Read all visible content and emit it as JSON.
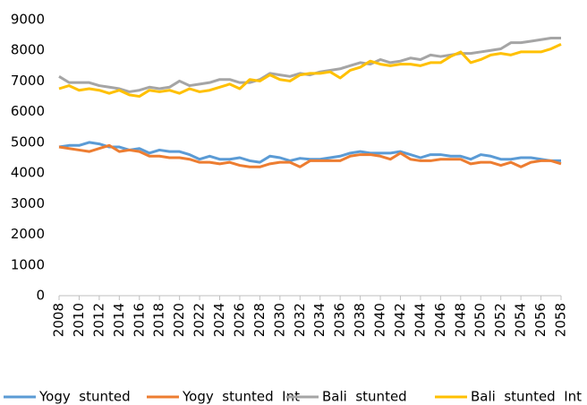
{
  "chart_data": {
    "type": "line",
    "x": [
      2008,
      2009,
      2010,
      2011,
      2012,
      2013,
      2014,
      2015,
      2016,
      2017,
      2018,
      2019,
      2020,
      2021,
      2022,
      2023,
      2024,
      2025,
      2026,
      2027,
      2028,
      2029,
      2030,
      2031,
      2032,
      2033,
      2034,
      2035,
      2036,
      2037,
      2038,
      2039,
      2040,
      2041,
      2042,
      2043,
      2044,
      2045,
      2046,
      2047,
      2048,
      2049,
      2050,
      2051,
      2052,
      2053,
      2054,
      2055,
      2056,
      2057,
      2058
    ],
    "xlim": [
      2008,
      2058
    ],
    "xticks": [
      2008,
      2010,
      2012,
      2014,
      2016,
      2018,
      2020,
      2022,
      2024,
      2026,
      2028,
      2030,
      2032,
      2034,
      2036,
      2038,
      2040,
      2042,
      2044,
      2046,
      2048,
      2050,
      2052,
      2054,
      2056,
      2058
    ],
    "ylim": [
      0,
      9000
    ],
    "yticks": [
      0,
      1000,
      2000,
      3000,
      4000,
      5000,
      6000,
      7000,
      8000,
      9000
    ],
    "grid": false,
    "legend": "bottom",
    "series": [
      {
        "name": "Yogy  stunted",
        "color": "#5b9bd5",
        "values": [
          4850,
          4900,
          4900,
          5000,
          4950,
          4850,
          4850,
          4750,
          4800,
          4650,
          4750,
          4700,
          4700,
          4600,
          4450,
          4550,
          4450,
          4450,
          4500,
          4400,
          4350,
          4550,
          4500,
          4400,
          4480,
          4450,
          4450,
          4500,
          4550,
          4650,
          4700,
          4650,
          4650,
          4650,
          4700,
          4600,
          4500,
          4600,
          4600,
          4550,
          4550,
          4450,
          4600,
          4550,
          4450,
          4450,
          4500,
          4500,
          4450,
          4400,
          4400
        ]
      },
      {
        "name": "Yogy  stunted  Int",
        "color": "#ed7d31",
        "values": [
          4850,
          4800,
          4750,
          4700,
          4800,
          4900,
          4700,
          4750,
          4700,
          4550,
          4550,
          4500,
          4500,
          4450,
          4350,
          4350,
          4300,
          4350,
          4250,
          4200,
          4200,
          4300,
          4350,
          4350,
          4200,
          4400,
          4400,
          4400,
          4400,
          4550,
          4600,
          4600,
          4550,
          4450,
          4650,
          4450,
          4400,
          4400,
          4450,
          4450,
          4450,
          4300,
          4350,
          4350,
          4250,
          4350,
          4200,
          4350,
          4400,
          4400,
          4300
        ]
      },
      {
        "name": "Bali  stunted",
        "color": "#a5a5a5",
        "values": [
          7150,
          6950,
          6950,
          6950,
          6850,
          6800,
          6750,
          6650,
          6700,
          6800,
          6750,
          6800,
          7000,
          6850,
          6900,
          6950,
          7050,
          7050,
          6950,
          6950,
          7050,
          7250,
          7200,
          7150,
          7250,
          7200,
          7300,
          7350,
          7400,
          7500,
          7600,
          7550,
          7700,
          7600,
          7650,
          7750,
          7700,
          7850,
          7800,
          7850,
          7900,
          7900,
          7950,
          8000,
          8050,
          8250,
          8250,
          8300,
          8350,
          8400,
          8400
        ]
      },
      {
        "name": "Bali  stunted  Int",
        "color": "#ffc000",
        "values": [
          6750,
          6850,
          6700,
          6750,
          6700,
          6600,
          6700,
          6550,
          6500,
          6700,
          6650,
          6700,
          6600,
          6750,
          6650,
          6700,
          6800,
          6900,
          6750,
          7050,
          7000,
          7200,
          7050,
          7000,
          7200,
          7250,
          7250,
          7300,
          7100,
          7350,
          7450,
          7650,
          7550,
          7500,
          7550,
          7550,
          7500,
          7600,
          7600,
          7800,
          7950,
          7600,
          7700,
          7850,
          7900,
          7850,
          7950,
          7950,
          7950,
          8050,
          8200
        ]
      }
    ]
  }
}
